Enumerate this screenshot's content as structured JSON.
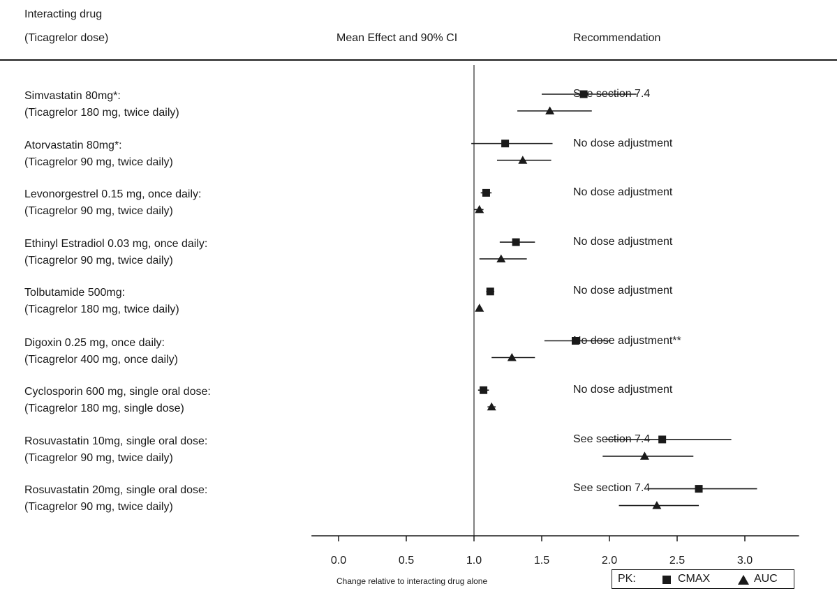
{
  "headers": {
    "col1_line1": "Interacting drug",
    "col1_line2": "(Ticagrelor dose)",
    "col2": "Mean Effect and 90% CI",
    "col3": "Recommendation"
  },
  "rows": [
    {
      "drug": "Simvastatin 80mg*:",
      "dose": "(Ticagrelor 180 mg, twice daily)",
      "recommendation": "See section 7.4"
    },
    {
      "drug": "Atorvastatin 80mg*:",
      "dose": "(Ticagrelor 90 mg, twice daily)",
      "recommendation": "No dose adjustment"
    },
    {
      "drug": "Levonorgestrel 0.15 mg, once daily:",
      "dose": "(Ticagrelor 90 mg, twice daily)",
      "recommendation": "No dose adjustment"
    },
    {
      "drug": "Ethinyl Estradiol 0.03 mg, once daily:",
      "dose": "(Ticagrelor 90 mg, twice daily)",
      "recommendation": "No dose adjustment"
    },
    {
      "drug": "Tolbutamide 500mg:",
      "dose": "(Ticagrelor 180 mg, twice daily)",
      "recommendation": "No dose adjustment"
    },
    {
      "drug": "Digoxin 0.25 mg, once daily:",
      "dose": "(Ticagrelor 400 mg, once daily)",
      "recommendation": "No dose adjustment**"
    },
    {
      "drug": "Cyclosporin 600 mg, single oral dose:",
      "dose": "(Ticagrelor 180 mg, single dose)",
      "recommendation": "No dose adjustment"
    },
    {
      "drug": "Rosuvastatin 10mg, single oral dose:",
      "dose": "(Ticagrelor 90 mg, twice daily)",
      "recommendation": "See section 7.4"
    },
    {
      "drug": "Rosuvastatin 20mg, single oral dose:",
      "dose": "(Ticagrelor 90 mg, twice daily)",
      "recommendation": "See section 7.4"
    }
  ],
  "legend": {
    "prefix": "PK:",
    "cmax": "CMAX",
    "auc": "AUC"
  },
  "chart_data": {
    "type": "forest",
    "xlabel": "Change relative to interacting drug alone",
    "xlim": [
      -0.2,
      3.4
    ],
    "xticks": [
      0.0,
      0.5,
      1.0,
      1.5,
      2.0,
      2.5,
      3.0
    ],
    "xtick_labels": [
      "0.0",
      "0.5",
      "1.0",
      "1.5",
      "2.0",
      "2.5",
      "3.0"
    ],
    "reference_line": 1.0,
    "series": [
      {
        "name": "CMAX",
        "marker": "square",
        "points": [
          {
            "mean": 1.81,
            "lo": 1.5,
            "hi": 2.2
          },
          {
            "mean": 1.23,
            "lo": 0.98,
            "hi": 1.58
          },
          {
            "mean": 1.09,
            "lo": 1.05,
            "hi": 1.13
          },
          {
            "mean": 1.31,
            "lo": 1.19,
            "hi": 1.45
          },
          {
            "mean": 1.12,
            "lo": 1.09,
            "hi": 1.15
          },
          {
            "mean": 1.75,
            "lo": 1.52,
            "hi": 2.01
          },
          {
            "mean": 1.07,
            "lo": 1.03,
            "hi": 1.11
          },
          {
            "mean": 2.39,
            "lo": 1.97,
            "hi": 2.9
          },
          {
            "mean": 2.66,
            "lo": 2.28,
            "hi": 3.09
          }
        ]
      },
      {
        "name": "AUC",
        "marker": "triangle",
        "points": [
          {
            "mean": 1.56,
            "lo": 1.32,
            "hi": 1.87
          },
          {
            "mean": 1.36,
            "lo": 1.17,
            "hi": 1.57
          },
          {
            "mean": 1.04,
            "lo": 1.0,
            "hi": 1.07
          },
          {
            "mean": 1.2,
            "lo": 1.04,
            "hi": 1.39
          },
          {
            "mean": 1.04,
            "lo": 1.02,
            "hi": 1.06
          },
          {
            "mean": 1.28,
            "lo": 1.13,
            "hi": 1.45
          },
          {
            "mean": 1.13,
            "lo": 1.1,
            "hi": 1.16
          },
          {
            "mean": 2.26,
            "lo": 1.95,
            "hi": 2.62
          },
          {
            "mean": 2.35,
            "lo": 2.07,
            "hi": 2.66
          }
        ]
      }
    ]
  }
}
